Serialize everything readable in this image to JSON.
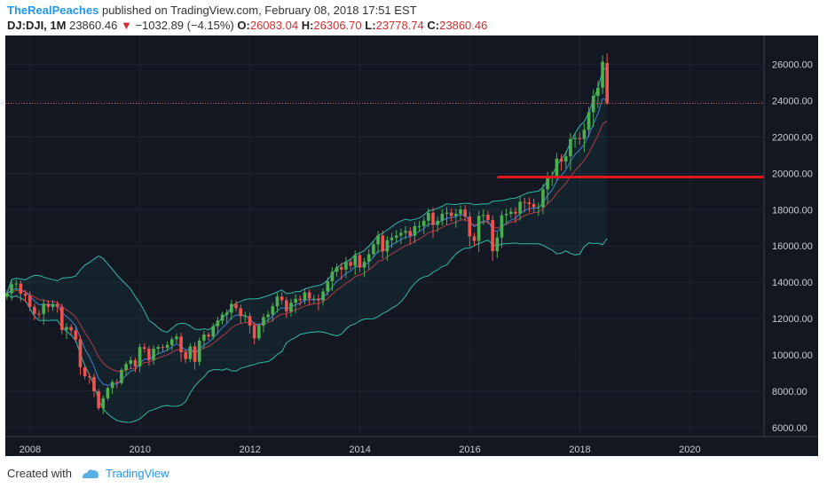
{
  "header": {
    "author": "TheRealPeaches",
    "published_text": "published on TradingView.com, February 08, 2018 17:51 EST",
    "symbol": "DJ:DJI, 1M",
    "last": "23860.46",
    "arrow": "▼",
    "change": "−1032.89 (−4.15%)",
    "o_label": "O:",
    "o_value": "26083.04",
    "h_label": "H:",
    "h_value": "26306.70",
    "l_label": "L:",
    "l_value": "23778.74",
    "c_label": "C:",
    "c_value": "23860.46"
  },
  "footer": {
    "created_with": "Created with",
    "brand": "TradingView"
  },
  "colors": {
    "background": "#131722",
    "grid": "#1f2433",
    "up": "#4caf50",
    "down": "#ef5350",
    "bollinger": "#2fb7a6",
    "ma_fast": "#3f7fd6",
    "ma_slow": "#b33a4a",
    "support_line": "#e0171d",
    "price_label_bg": "#ef5350"
  },
  "chart_data": {
    "type": "candlestick",
    "symbol": "DJ:DJI",
    "interval": "1M",
    "y_ticks": [
      6000,
      8000,
      10000,
      12000,
      14000,
      16000,
      18000,
      20000,
      22000,
      24000,
      26000
    ],
    "x_ticks": [
      {
        "label": "2008",
        "year": 2008
      },
      {
        "label": "2010",
        "year": 2010
      },
      {
        "label": "2012",
        "year": 2012
      },
      {
        "label": "2014",
        "year": 2014
      },
      {
        "label": "2016",
        "year": 2016
      },
      {
        "label": "2018",
        "year": 2018
      },
      {
        "label": "2020",
        "year": 2020
      }
    ],
    "ylim": [
      5500,
      27600
    ],
    "xlim": [
      2007.55,
      2021.35
    ],
    "last_price": 23860.46,
    "last_price_label": "23860.46",
    "horizontal_line": {
      "value": 19800,
      "x_start": 2016.5
    },
    "series_monthly_close": {
      "start": 2007.58,
      "values": [
        13400,
        13900,
        13930,
        13370,
        13260,
        12650,
        12270,
        12260,
        12820,
        12640,
        12810,
        12640,
        11380,
        11540,
        11350,
        10850,
        9320,
        8830,
        8780,
        8000,
        7060,
        7610,
        8170,
        8500,
        8450,
        9170,
        9500,
        9710,
        9360,
        10430,
        10340,
        9710,
        10340,
        10430,
        10400,
        10540,
        10860,
        11010,
        10140,
        9770,
        10470,
        9620,
        10790,
        11120,
        11010,
        11580,
        11890,
        12220,
        12320,
        12810,
        12570,
        12140,
        12140,
        11610,
        10910,
        11610,
        12080,
        12220,
        12680,
        13210,
        13010,
        12390,
        12880,
        13090,
        13010,
        13440,
        13100,
        13100,
        13000,
        13490,
        14050,
        14580,
        14840,
        14700,
        15120,
        14910,
        15500,
        14810,
        15130,
        15550,
        16090,
        16580,
        15700,
        16320,
        16460,
        16580,
        16720,
        16830,
        16560,
        17090,
        17100,
        17390,
        17830,
        17160,
        17390,
        17780,
        17840,
        17660,
        17780,
        18010,
        17620,
        16530,
        16280,
        17660,
        17720,
        17430,
        15710,
        16470,
        17690,
        17770,
        17890,
        17790,
        18430,
        18400,
        18310,
        18140,
        18140,
        19120,
        19760,
        19860,
        20810,
        20660,
        20940,
        21890,
        21950,
        21890,
        22400,
        23380,
        24270,
        24720,
        26150,
        23860
      ]
    }
  }
}
